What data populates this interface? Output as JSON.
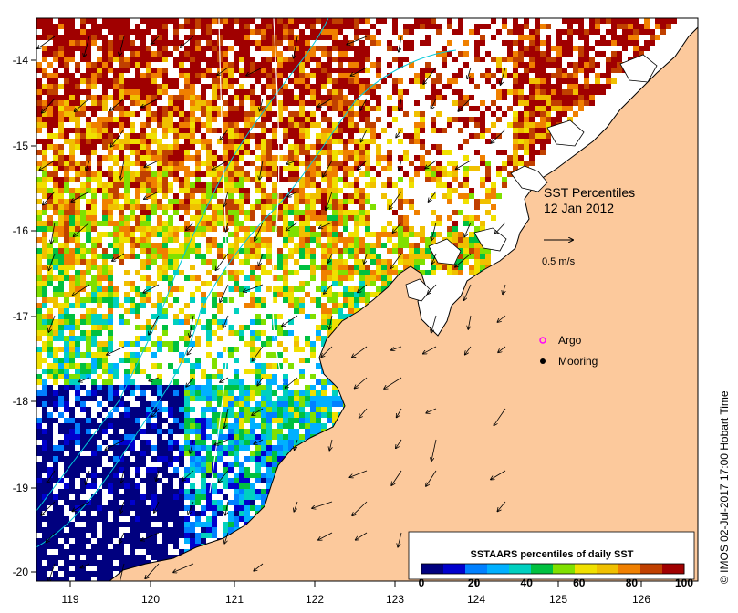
{
  "map": {
    "title_line1": "SST Percentiles",
    "title_line2": "12 Jan 2012",
    "vector_scale_label": "0.5 m/s",
    "legend": [
      {
        "label": "Argo",
        "symbol": "magenta-ring-icon",
        "color": "#ff00ff"
      },
      {
        "label": "Mooring",
        "symbol": "black-dot-icon",
        "color": "#000000"
      }
    ],
    "colorbar": {
      "title": "SSTAARS percentiles of daily SST",
      "ticks": [
        "0",
        "20",
        "40",
        "60",
        "80",
        "100"
      ],
      "colors": [
        "#00007f",
        "#0000cd",
        "#0080ff",
        "#00b0ff",
        "#00d0c0",
        "#00c040",
        "#80e000",
        "#f0e000",
        "#f0c000",
        "#f08000",
        "#c04000",
        "#a00000"
      ]
    },
    "lon_ticks": [
      "119",
      "120",
      "121",
      "122",
      "123",
      "124",
      "125",
      "126"
    ],
    "lat_ticks": [
      "-14",
      "-15",
      "-16",
      "-17",
      "-18",
      "-19",
      "-20"
    ],
    "land_color": "#fcc99c",
    "credit": "© IMOS 02-Jul-2017 17:00 Hobart Time"
  }
}
